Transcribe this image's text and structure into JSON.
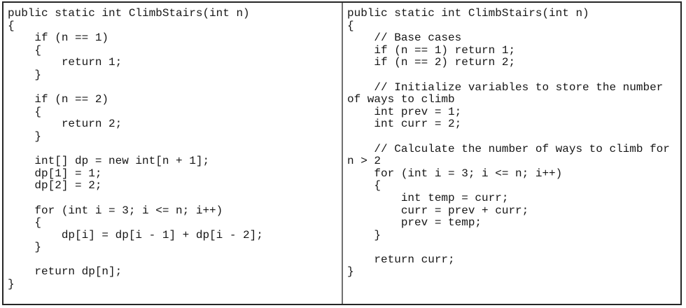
{
  "document": {
    "description_colors": {
      "background": "#ffffff",
      "outer_border": "#262626",
      "divider": "#707070",
      "text": "#161616"
    }
  },
  "panels": {
    "left": {
      "code_lines": [
        "public static int ClimbStairs(int n)",
        "{",
        "    if (n == 1)",
        "    {",
        "        return 1;",
        "    }",
        "",
        "    if (n == 2)",
        "    {",
        "        return 2;",
        "    }",
        "",
        "    int[] dp = new int[n + 1];",
        "    dp[1] = 1;",
        "    dp[2] = 2;",
        "",
        "    for (int i = 3; i <= n; i++)",
        "    {",
        "        dp[i] = dp[i - 1] + dp[i - 2];",
        "    }",
        "",
        "    return dp[n];",
        "}"
      ]
    },
    "right": {
      "code_lines": [
        "public static int ClimbStairs(int n)",
        "{",
        "    // Base cases",
        "    if (n == 1) return 1;",
        "    if (n == 2) return 2;",
        "",
        "    // Initialize variables to store the number",
        "of ways to climb",
        "    int prev = 1;",
        "    int curr = 2;",
        "",
        "    // Calculate the number of ways to climb for",
        "n > 2",
        "    for (int i = 3; i <= n; i++)",
        "    {",
        "        int temp = curr;",
        "        curr = prev + curr;",
        "        prev = temp;",
        "    }",
        "",
        "    return curr;",
        "}"
      ]
    }
  }
}
